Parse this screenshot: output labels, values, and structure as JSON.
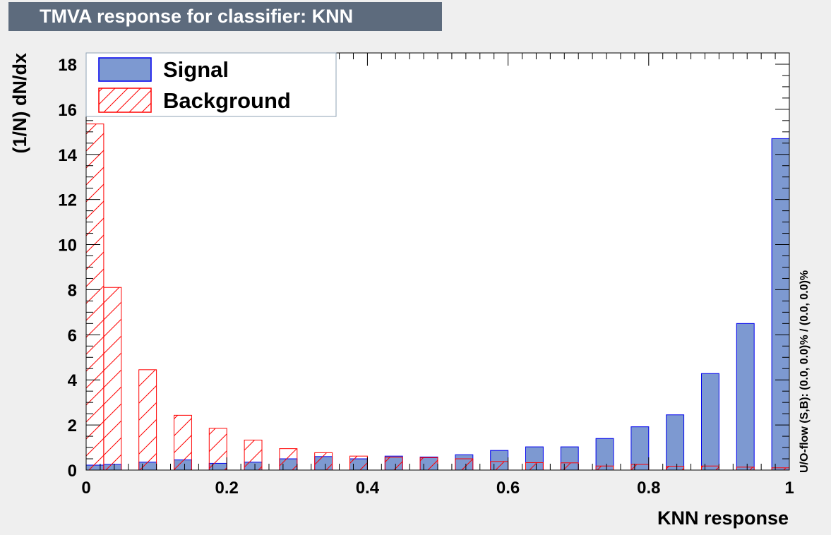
{
  "title": "TMVA response for classifier: KNN",
  "side_note": "U/O-flow (S,B): (0.0, 0.0)% / (0.0, 0.0)%",
  "colors": {
    "signal_fill": "#7d99d1",
    "signal_line": "#0000ee",
    "background_line": "#ff0000",
    "title_bg": "#5d6b7d"
  },
  "chart_data": {
    "type": "bar",
    "xlabel": "KNN response",
    "ylabel": "(1/N) dN/dx",
    "xlim": [
      0,
      1
    ],
    "ylim": [
      0,
      18.5
    ],
    "x_ticks": [
      "0",
      "0.2",
      "0.4",
      "0.6",
      "0.8",
      "1"
    ],
    "y_ticks": [
      "0",
      "2",
      "4",
      "6",
      "8",
      "10",
      "12",
      "14",
      "16",
      "18"
    ],
    "grid": false,
    "legend_position": "top-left",
    "bin_edges": [
      0,
      0.025,
      0.05,
      0.075,
      0.1,
      0.125,
      0.15,
      0.175,
      0.2,
      0.225,
      0.25,
      0.275,
      0.3,
      0.325,
      0.35,
      0.375,
      0.4,
      0.425,
      0.45,
      0.475,
      0.5,
      0.525,
      0.55,
      0.575,
      0.6,
      0.625,
      0.65,
      0.675,
      0.7,
      0.725,
      0.75,
      0.775,
      0.8,
      0.825,
      0.85,
      0.875,
      0.9,
      0.925,
      0.95,
      0.975,
      1.0
    ],
    "series": [
      {
        "name": "Signal",
        "style": "filled",
        "bins": [
          [
            0.0,
            0.025,
            0.22
          ],
          [
            0.025,
            0.05,
            0.25
          ],
          [
            0.075,
            0.1,
            0.35
          ],
          [
            0.125,
            0.15,
            0.45
          ],
          [
            0.175,
            0.2,
            0.3
          ],
          [
            0.225,
            0.25,
            0.35
          ],
          [
            0.275,
            0.3,
            0.5
          ],
          [
            0.325,
            0.35,
            0.6
          ],
          [
            0.375,
            0.4,
            0.5
          ],
          [
            0.425,
            0.45,
            0.62
          ],
          [
            0.475,
            0.5,
            0.58
          ],
          [
            0.525,
            0.55,
            0.68
          ],
          [
            0.575,
            0.6,
            0.87
          ],
          [
            0.625,
            0.65,
            1.03
          ],
          [
            0.675,
            0.7,
            1.03
          ],
          [
            0.725,
            0.75,
            1.4
          ],
          [
            0.775,
            0.8,
            1.92
          ],
          [
            0.825,
            0.85,
            2.45
          ],
          [
            0.875,
            0.9,
            4.28
          ],
          [
            0.925,
            0.95,
            6.5
          ],
          [
            0.975,
            1.0,
            14.7
          ]
        ]
      },
      {
        "name": "Background",
        "style": "hatched",
        "bins": [
          [
            0.0,
            0.025,
            15.35
          ],
          [
            0.025,
            0.05,
            8.1
          ],
          [
            0.075,
            0.1,
            4.45
          ],
          [
            0.125,
            0.15,
            2.43
          ],
          [
            0.175,
            0.2,
            1.85
          ],
          [
            0.225,
            0.25,
            1.33
          ],
          [
            0.275,
            0.3,
            0.95
          ],
          [
            0.325,
            0.35,
            0.77
          ],
          [
            0.375,
            0.4,
            0.62
          ],
          [
            0.425,
            0.45,
            0.57
          ],
          [
            0.475,
            0.5,
            0.55
          ],
          [
            0.525,
            0.55,
            0.5
          ],
          [
            0.575,
            0.6,
            0.38
          ],
          [
            0.625,
            0.65,
            0.33
          ],
          [
            0.675,
            0.7,
            0.32
          ],
          [
            0.725,
            0.75,
            0.18
          ],
          [
            0.775,
            0.8,
            0.25
          ],
          [
            0.825,
            0.85,
            0.17
          ],
          [
            0.875,
            0.9,
            0.18
          ],
          [
            0.925,
            0.95,
            0.13
          ],
          [
            0.975,
            1.0,
            0.1
          ]
        ]
      }
    ]
  }
}
